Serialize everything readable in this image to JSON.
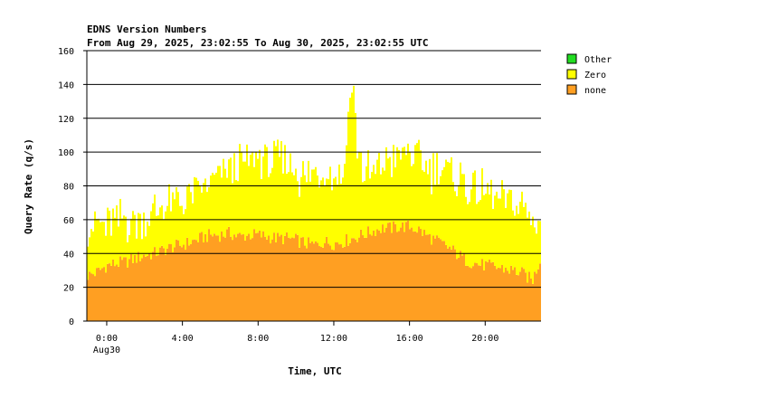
{
  "chart_data": {
    "type": "area",
    "stacked": true,
    "title": "EDNS Version Numbers",
    "subtitle": "From Aug 29, 2025, 23:02:55 To Aug 30, 2025, 23:02:55 UTC",
    "xlabel": "Time, UTC",
    "ylabel": "Query Rate (q/s)",
    "ylim": [
      0,
      160
    ],
    "yticks": [
      0,
      20,
      40,
      60,
      80,
      100,
      120,
      140,
      160
    ],
    "xlim_hours": [
      -1.05,
      22.95
    ],
    "xticks": [
      {
        "hour": 0,
        "label": "0:00",
        "sublabel": "Aug30"
      },
      {
        "hour": 4,
        "label": "4:00",
        "sublabel": ""
      },
      {
        "hour": 8,
        "label": "8:00",
        "sublabel": ""
      },
      {
        "hour": 12,
        "label": "12:00",
        "sublabel": ""
      },
      {
        "hour": 16,
        "label": "16:00",
        "sublabel": ""
      },
      {
        "hour": 20,
        "label": "20:00",
        "sublabel": ""
      }
    ],
    "grid": "horizontal",
    "legend_position": "right",
    "legend": [
      {
        "name": "Other",
        "color": "#22dd22"
      },
      {
        "name": "Zero",
        "color": "#ffff00"
      },
      {
        "name": "none",
        "color": "#ff9f22"
      }
    ],
    "series": [
      {
        "name": "none",
        "color": "#ff9f22",
        "x_hours": [
          -1,
          -0.5,
          0,
          0.5,
          1,
          1.5,
          2,
          2.5,
          3,
          3.5,
          4,
          4.5,
          5,
          5.5,
          6,
          6.5,
          7,
          7.5,
          8,
          8.5,
          9,
          9.5,
          10,
          10.5,
          11,
          11.5,
          12,
          12.5,
          13,
          13.5,
          14,
          14.5,
          15,
          15.5,
          16,
          16.5,
          17,
          17.5,
          18,
          18.5,
          19,
          19.5,
          20,
          20.5,
          21,
          21.5,
          22,
          22.5,
          22.9
        ],
        "values": [
          27,
          29,
          33,
          34,
          35,
          37,
          39,
          40,
          42,
          44,
          45,
          47,
          49,
          51,
          51,
          52,
          50,
          51,
          51,
          50,
          49,
          49,
          48,
          46,
          45,
          47,
          46,
          47,
          49,
          51,
          53,
          55,
          55,
          56,
          56,
          54,
          50,
          47,
          44,
          40,
          36,
          34,
          33,
          32,
          31,
          30,
          28,
          24,
          36
        ]
      },
      {
        "name": "Zero",
        "color": "#ffff00",
        "x_hours": [
          -1,
          -0.5,
          0,
          0.5,
          1,
          1.5,
          2,
          2.5,
          3,
          3.5,
          4,
          4.5,
          5,
          5.5,
          6,
          6.5,
          7,
          7.5,
          8,
          8.5,
          9,
          9.5,
          10,
          10.5,
          11,
          11.5,
          12,
          12.5,
          12.8,
          13,
          13.2,
          13.5,
          14,
          14.5,
          15,
          15.5,
          16,
          16.5,
          17,
          17.5,
          18,
          18.5,
          19,
          19.5,
          20,
          20.5,
          21,
          21.5,
          22,
          22.5,
          22.9
        ],
        "values": [
          30,
          28,
          24,
          25,
          24,
          22,
          22,
          24,
          26,
          25,
          26,
          28,
          28,
          30,
          36,
          38,
          42,
          44,
          45,
          45,
          46,
          45,
          40,
          38,
          42,
          44,
          42,
          40,
          80,
          95,
          60,
          38,
          34,
          38,
          40,
          42,
          44,
          42,
          40,
          42,
          44,
          44,
          46,
          44,
          42,
          40,
          40,
          40,
          38,
          36,
          26
        ]
      },
      {
        "name": "Other",
        "color": "#22dd22",
        "x_hours": [
          -1,
          22.9
        ],
        "values": [
          0,
          0
        ]
      }
    ]
  }
}
